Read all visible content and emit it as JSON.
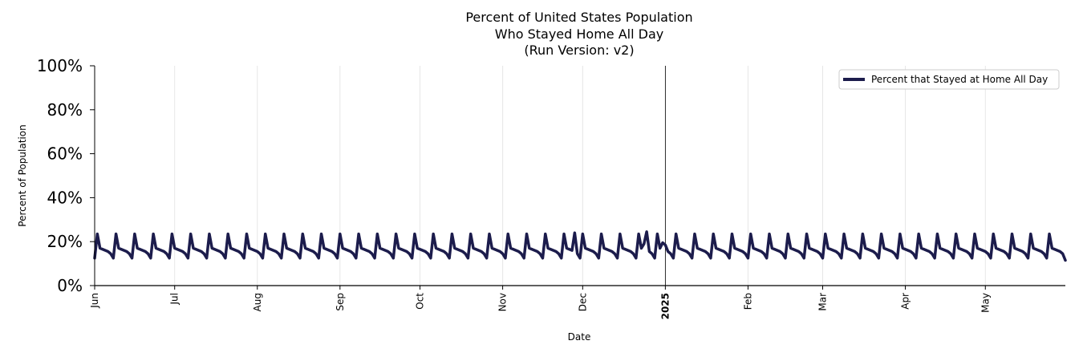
{
  "chart_data": {
    "type": "line",
    "title_lines": [
      "Percent of United States Population",
      "Who Stayed Home All Day",
      "(Run Version: v2)"
    ],
    "xlabel": "Date",
    "ylabel": "Percent of Population",
    "x_range": [
      "2024-06-01",
      "2025-05-31"
    ],
    "ylim": [
      0,
      100
    ],
    "y_ticks": [
      "0%",
      "20%",
      "40%",
      "60%",
      "80%",
      "100%"
    ],
    "x_ticks": [
      {
        "date": "2024-06-01",
        "label": "Jun",
        "bold": false
      },
      {
        "date": "2024-07-01",
        "label": "Jul",
        "bold": false
      },
      {
        "date": "2024-08-01",
        "label": "Aug",
        "bold": false
      },
      {
        "date": "2024-09-01",
        "label": "Sep",
        "bold": false
      },
      {
        "date": "2024-10-01",
        "label": "Oct",
        "bold": false
      },
      {
        "date": "2024-11-01",
        "label": "Nov",
        "bold": false
      },
      {
        "date": "2024-12-01",
        "label": "Dec",
        "bold": false
      },
      {
        "date": "2025-01-01",
        "label": "2025",
        "bold": true
      },
      {
        "date": "2025-02-01",
        "label": "Feb",
        "bold": false
      },
      {
        "date": "2025-03-01",
        "label": "Mar",
        "bold": false
      },
      {
        "date": "2025-04-01",
        "label": "Apr",
        "bold": false
      },
      {
        "date": "2025-05-01",
        "label": "May",
        "bold": false
      }
    ],
    "grid": "vertical",
    "reference_line_date": "2025-01-01",
    "legend_position": "top-right",
    "series": [
      {
        "name": "Percent that Stayed at Home All Day",
        "color": "#1c1c4c",
        "weekly_pattern": [
          23.5,
          17.0,
          16.5,
          16.0,
          15.5,
          14.5,
          12.5
        ],
        "first_date": "2024-06-01",
        "first_value": 12.5,
        "second_value": 23.5,
        "last_date": "2025-05-31",
        "last_value": 11.5,
        "holiday_values": [
          {
            "date": "2024-11-28",
            "value": 24.0
          },
          {
            "date": "2024-12-24",
            "value": 19.0
          },
          {
            "date": "2024-12-25",
            "value": 24.5
          },
          {
            "date": "2024-12-31",
            "value": 19.5
          },
          {
            "date": "2025-01-01",
            "value": 18.5
          }
        ]
      }
    ]
  }
}
